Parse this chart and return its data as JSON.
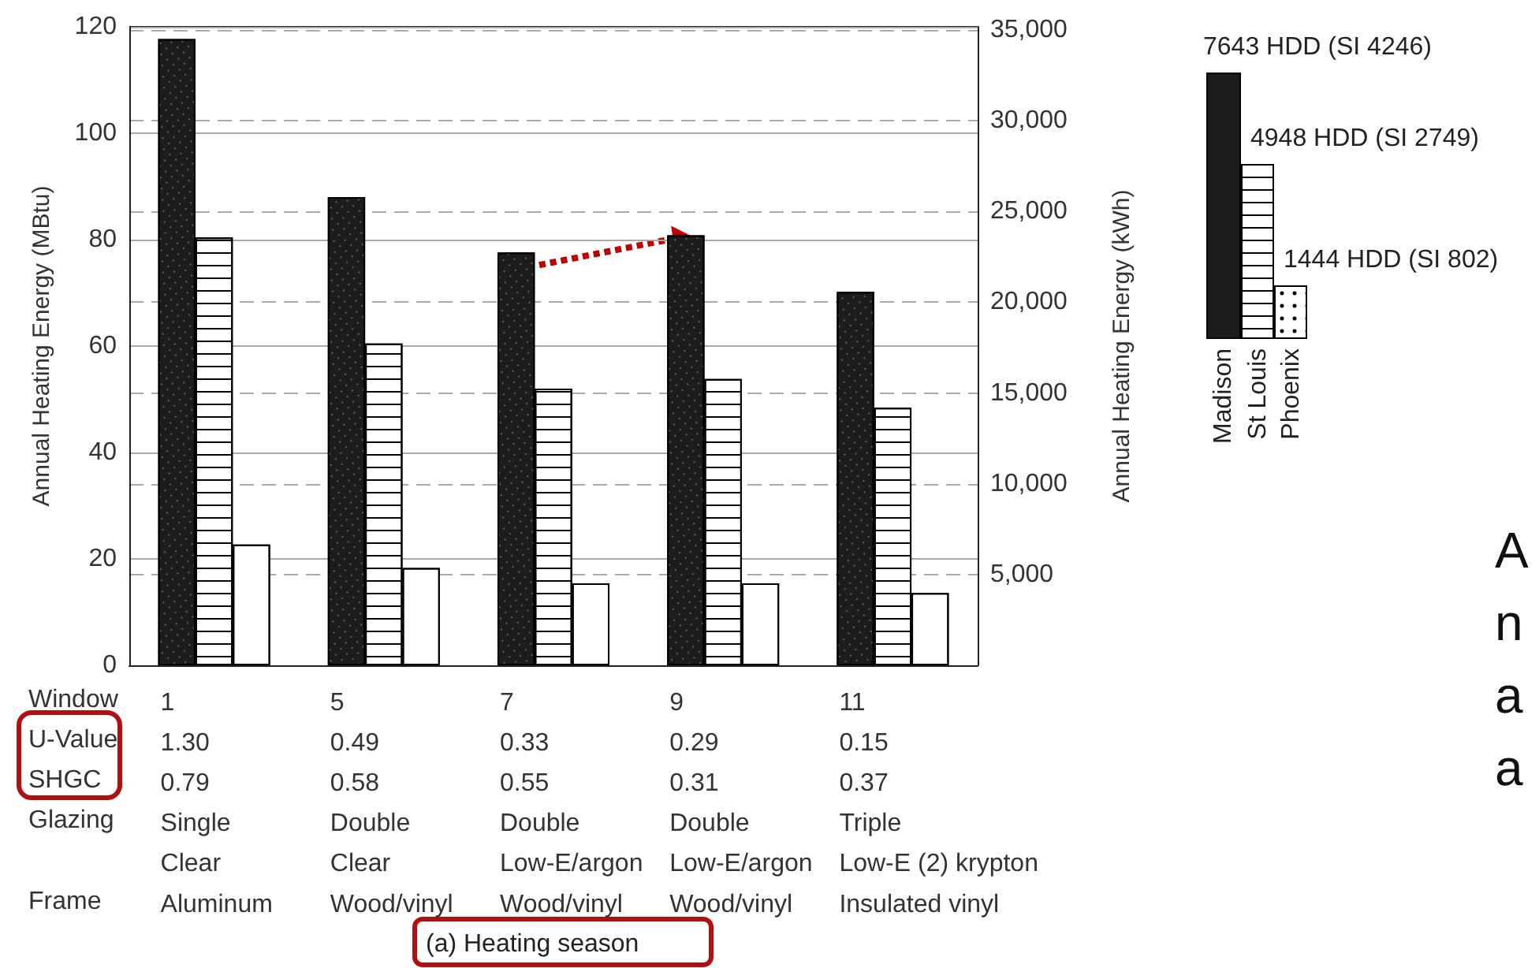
{
  "chart_data": {
    "type": "bar",
    "categories": [
      "1\n1.30\n0.79\nSingle\nClear\nAluminum",
      "5\n0.49\n0.58\nDouble\nClear\nWood/vinyl",
      "7\n0.33\n0.55\nDouble\nLow-E/argon\nWood/vinyl",
      "9\n0.29\n0.31\nDouble\nLow-E/argon\nWood/vinyl",
      "11\n0.15\n0.37\nTriple\nLow-E (2) krypton\nInsulated vinyl"
    ],
    "xlabel": "Window\nU-Value\nSHGC\nGlazing\n\nFrame",
    "ylabel": "Annual Heating Energy (MBtu)",
    "y2label": "Annual Heating Energy (kWh)",
    "series": [
      {
        "name": "Madison",
        "color": "#1c1c1c",
        "values": [
          117.7,
          88,
          77.6,
          80.8,
          70.2
        ]
      },
      {
        "name": "St Louis",
        "color": "#ffffff",
        "values": [
          80.4,
          60.5,
          52,
          53.8,
          48.4
        ]
      },
      {
        "name": "Phoenix",
        "color": "#ffffff",
        "values": [
          22.7,
          18.3,
          15.4,
          15.4,
          13.6
        ]
      }
    ],
    "ylim": [
      0,
      120
    ],
    "yticks": [
      0,
      20,
      40,
      60,
      80,
      100,
      120
    ],
    "y2lim": [
      0,
      35170
    ],
    "y2ticks": [
      {
        "value": 5000,
        "label": "5,000"
      },
      {
        "value": 10000,
        "label": "10,000"
      },
      {
        "value": 15000,
        "label": "15,000"
      },
      {
        "value": 20000,
        "label": "20,000"
      },
      {
        "value": 25000,
        "label": "25,000"
      },
      {
        "value": 30000,
        "label": "30,000"
      },
      {
        "value": 35000,
        "label": "35,000"
      }
    ],
    "grid": true,
    "legend": "right",
    "annotations": [
      "7643 HDD (SI 4246)",
      "4948 HDD (SI 2749)",
      "1444 HDD (SI 802)",
      "(a) Heating season",
      "A",
      "n",
      "a",
      "a"
    ]
  }
}
